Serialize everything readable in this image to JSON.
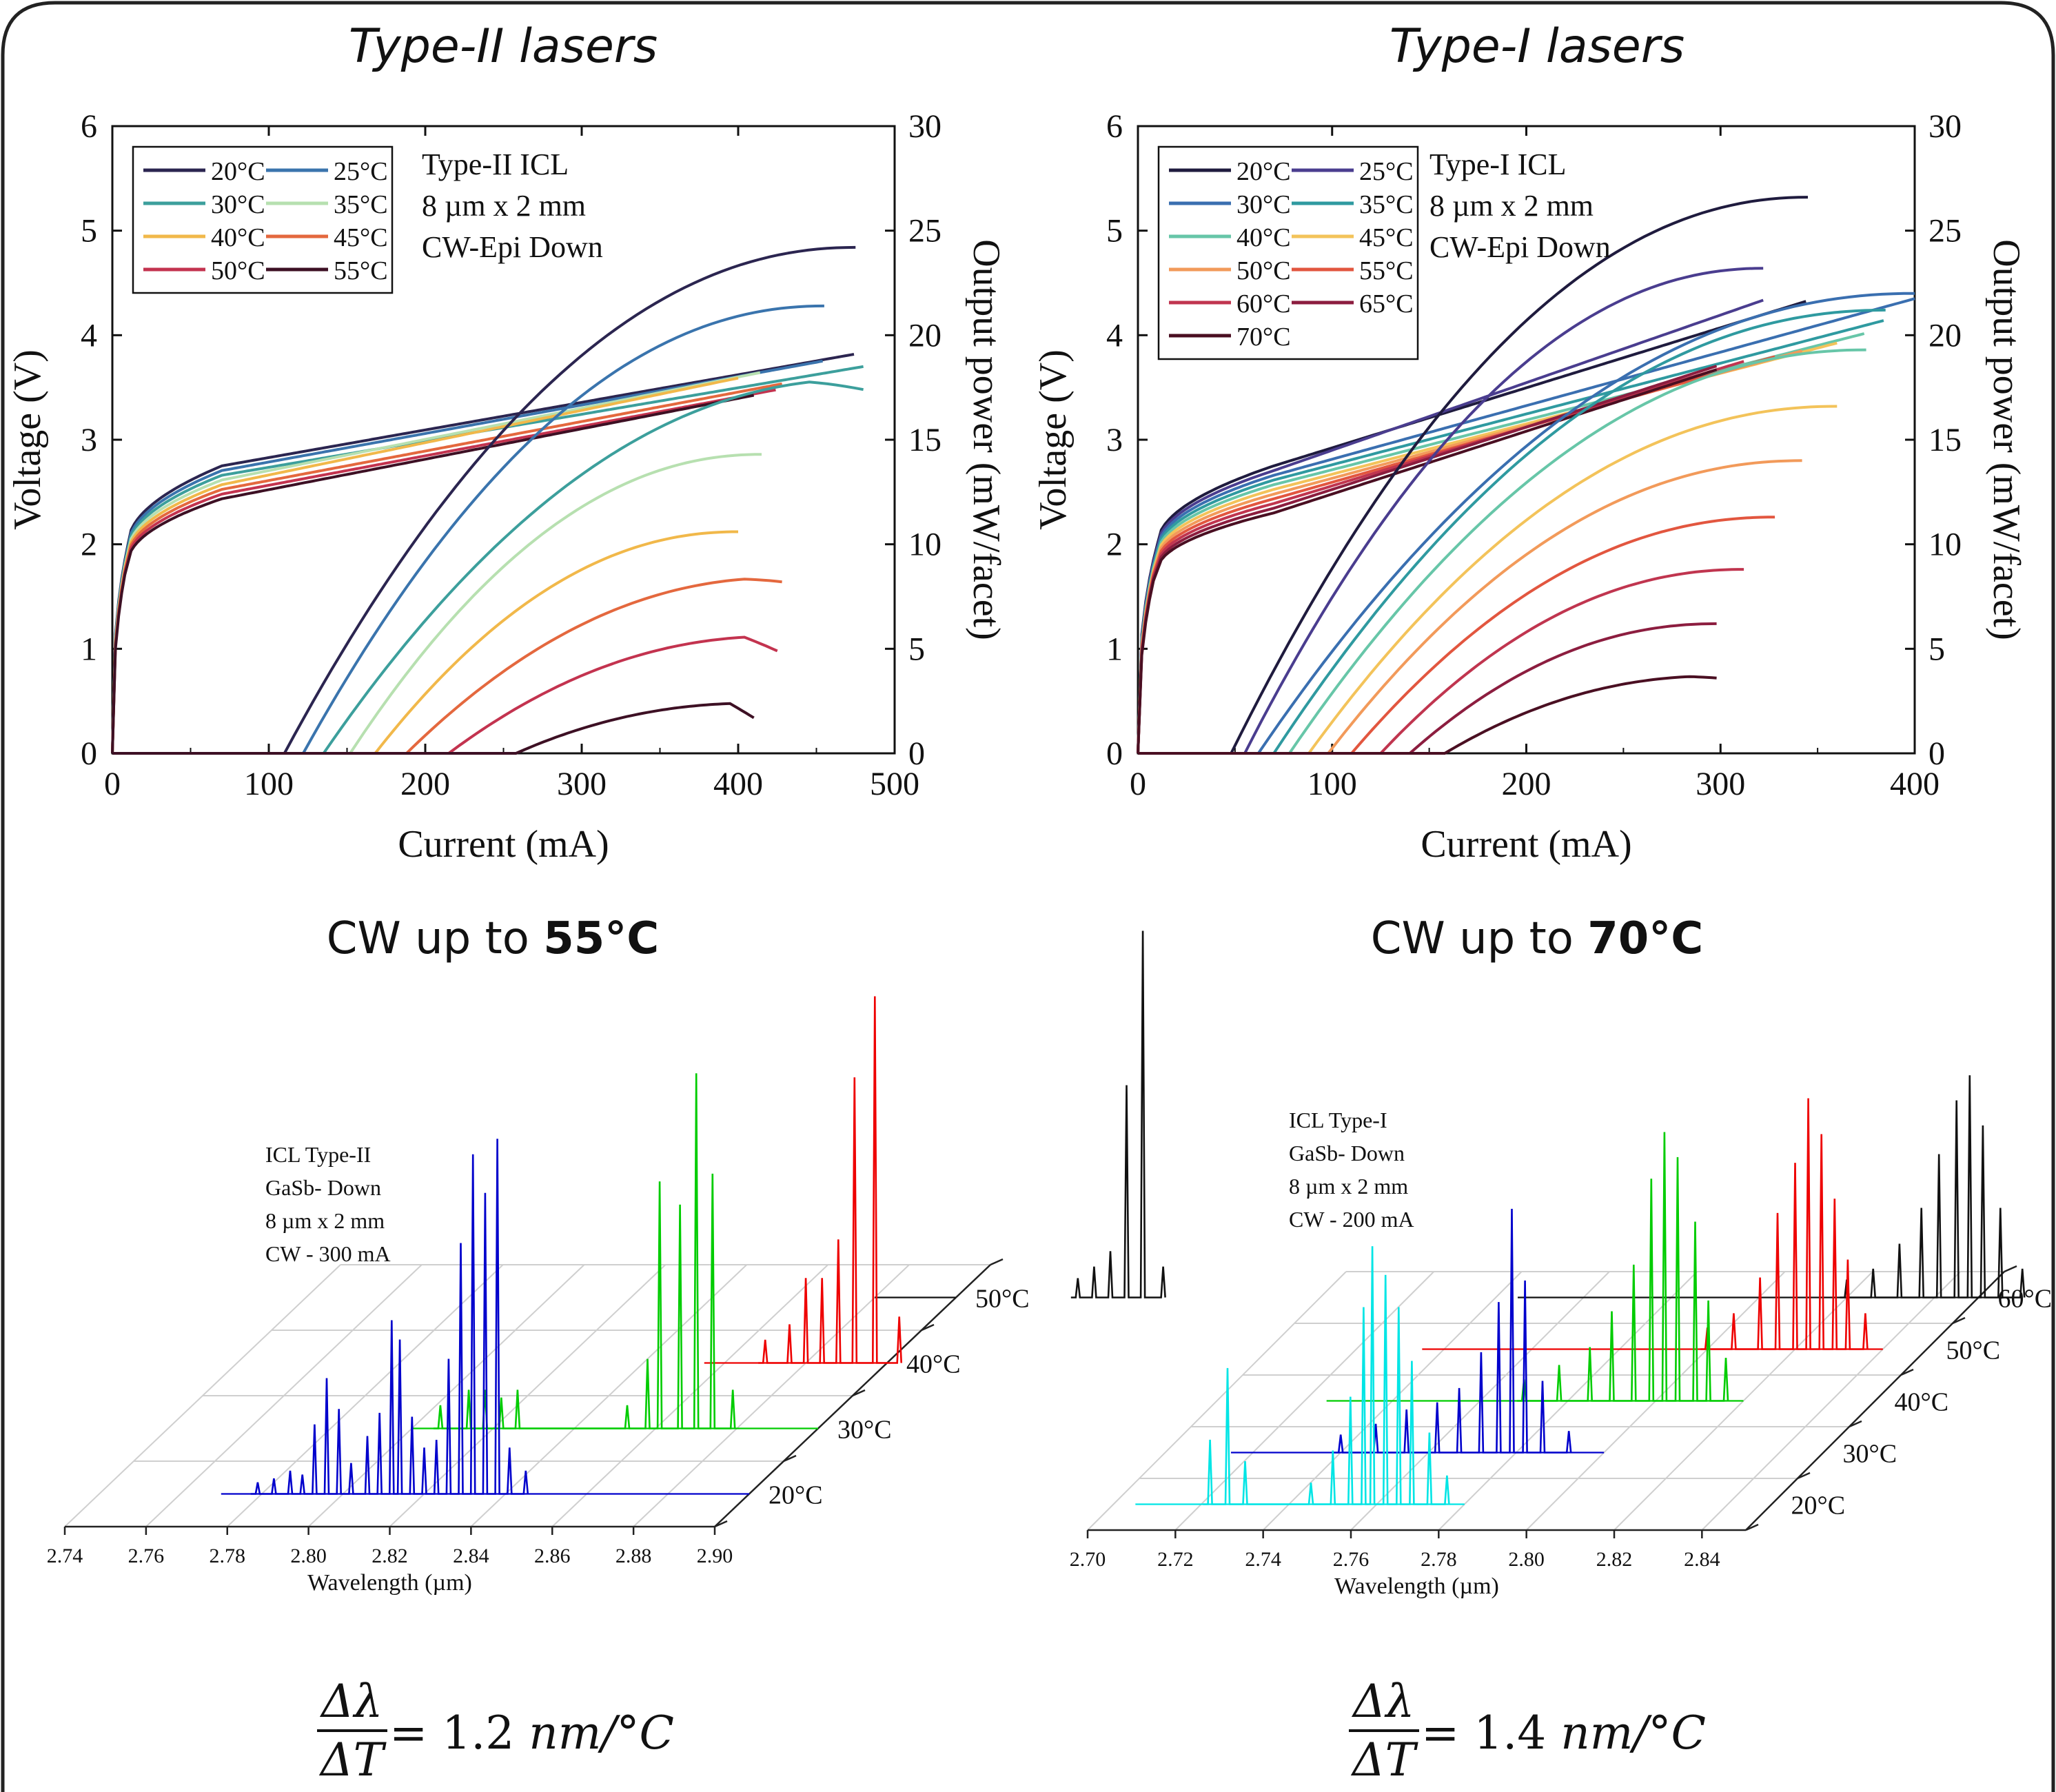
{
  "panels": [
    {
      "title": "Type-II lasers",
      "cw_prefix": "CW up to ",
      "cw_temp": "55°C",
      "formula_num": "Δλ",
      "formula_den": "ΔT",
      "formula_rhs_prefix": "= 1.2 ",
      "formula_rhs_unit": "nm/°C"
    },
    {
      "title": "Type-I lasers",
      "cw_prefix": "CW up to ",
      "cw_temp": "70°C",
      "formula_num": "Δλ",
      "formula_den": "ΔT",
      "formula_rhs_prefix": "= 1.4 ",
      "formula_rhs_unit": "nm/°C"
    }
  ],
  "chart_data": [
    {
      "id": "liv_type2",
      "type": "line",
      "xlabel": "Current (mA)",
      "ylabel_left": "Voltage (V)",
      "ylabel_right": "Output power (mW/facet)",
      "xlim": [
        0,
        500
      ],
      "ylim_left": [
        0,
        6
      ],
      "ylim_right": [
        0,
        30
      ],
      "xticks": [
        0,
        100,
        200,
        300,
        400,
        500
      ],
      "yticks_left": [
        0,
        1,
        2,
        3,
        4,
        5,
        6
      ],
      "yticks_right": [
        0,
        5,
        10,
        15,
        20,
        25,
        30
      ],
      "annotation": [
        "Type-II ICL",
        "8 µm x 2 mm",
        "CW-Epi Down"
      ],
      "legend_columns": 2,
      "legend_position": "top-left",
      "series": [
        {
          "name": "20°C",
          "color": "#2b2550",
          "v_end": 3.82,
          "power": {
            "ith": 110,
            "end": 475,
            "peak": 24.2,
            "rollover": 24.2
          }
        },
        {
          "name": "25°C",
          "color": "#3a74ad",
          "v_end": 3.78,
          "power": {
            "ith": 122,
            "end": 455,
            "peak": 21.4,
            "rollover": 21.4
          }
        },
        {
          "name": "30°C",
          "color": "#3c9f9c",
          "v_end": 3.75,
          "power": {
            "ith": 135,
            "end": 480,
            "peak": 17.9,
            "rollover": 17.4
          }
        },
        {
          "name": "35°C",
          "color": "#b7e0b0",
          "v_end": 3.72,
          "power": {
            "ith": 152,
            "end": 415,
            "peak": 14.3,
            "rollover": 14.3
          }
        },
        {
          "name": "40°C",
          "color": "#f1b84a",
          "v_end": 3.69,
          "power": {
            "ith": 168,
            "end": 400,
            "peak": 10.6,
            "rollover": 10.6
          }
        },
        {
          "name": "45°C",
          "color": "#e4683e",
          "v_end": 3.66,
          "power": {
            "ith": 188,
            "end": 428,
            "peak": 8.4,
            "rollover": 8.2
          }
        },
        {
          "name": "50°C",
          "color": "#c3334f",
          "v_end": 3.63,
          "power": {
            "ith": 215,
            "end": 425,
            "peak": 5.6,
            "rollover": 4.9
          }
        },
        {
          "name": "55°C",
          "color": "#3d1024",
          "v_end": 3.6,
          "power": {
            "ith": 258,
            "end": 410,
            "peak": 2.4,
            "rollover": 1.7
          }
        }
      ]
    },
    {
      "id": "liv_type1",
      "type": "line",
      "xlabel": "Current (mA)",
      "ylabel_left": "Voltage (V)",
      "ylabel_right": "Output power (mW/facet)",
      "xlim": [
        0,
        400
      ],
      "ylim_left": [
        0,
        6
      ],
      "ylim_right": [
        0,
        30
      ],
      "xticks": [
        0,
        100,
        200,
        300,
        400
      ],
      "yticks_left": [
        0,
        1,
        2,
        3,
        4,
        5,
        6
      ],
      "yticks_right": [
        0,
        5,
        10,
        15,
        20,
        25,
        30
      ],
      "annotation": [
        "Type-I ICL",
        "8 µm x 2 mm",
        "CW-Epi Down"
      ],
      "legend_columns": 2,
      "legend_position": "top-left",
      "series": [
        {
          "name": "20°C",
          "color": "#1f1b3e",
          "v_end": 4.33,
          "power": {
            "ith": 48,
            "end": 345,
            "peak": 26.6,
            "rollover": 26.6
          }
        },
        {
          "name": "25°C",
          "color": "#4a3d8f",
          "v_end": 4.36,
          "power": {
            "ith": 55,
            "end": 322,
            "peak": 23.2,
            "rollover": 23.2
          }
        },
        {
          "name": "30°C",
          "color": "#3a6fb0",
          "v_end": 4.4,
          "power": {
            "ith": 62,
            "end": 400,
            "peak": 22.0,
            "rollover": 22.0
          }
        },
        {
          "name": "35°C",
          "color": "#2f9aa0",
          "v_end": 4.22,
          "power": {
            "ith": 70,
            "end": 385,
            "peak": 21.2,
            "rollover": 21.2
          }
        },
        {
          "name": "40°C",
          "color": "#67c6a8",
          "v_end": 4.12,
          "power": {
            "ith": 78,
            "end": 375,
            "peak": 19.3,
            "rollover": 19.3
          }
        },
        {
          "name": "45°C",
          "color": "#f3c35a",
          "v_end": 4.05,
          "power": {
            "ith": 88,
            "end": 360,
            "peak": 16.6,
            "rollover": 16.6
          }
        },
        {
          "name": "50°C",
          "color": "#f29a5a",
          "v_end": 4.0,
          "power": {
            "ith": 98,
            "end": 342,
            "peak": 14.0,
            "rollover": 14.0
          }
        },
        {
          "name": "55°C",
          "color": "#e2563f",
          "v_end": 3.97,
          "power": {
            "ith": 110,
            "end": 328,
            "peak": 11.3,
            "rollover": 11.3
          }
        },
        {
          "name": "60°C",
          "color": "#c0354f",
          "v_end": 3.95,
          "power": {
            "ith": 125,
            "end": 312,
            "peak": 8.8,
            "rollover": 8.8
          }
        },
        {
          "name": "65°C",
          "color": "#8c1d3f",
          "v_end": 3.93,
          "power": {
            "ith": 140,
            "end": 298,
            "peak": 6.2,
            "rollover": 6.2
          }
        },
        {
          "name": "70°C",
          "color": "#4a0f22",
          "v_end": 3.92,
          "power": {
            "ith": 158,
            "end": 298,
            "peak": 3.7,
            "rollover": 3.6
          }
        }
      ]
    },
    {
      "id": "spectra_type2",
      "type": "line",
      "xlabel": "Wavelength (µm)",
      "xlim": [
        2.74,
        2.9
      ],
      "xticks": [
        "2.74",
        "2.76",
        "2.78",
        "2.80",
        "2.82",
        "2.84",
        "2.86",
        "2.88",
        "2.90"
      ],
      "annotation": [
        "ICL Type-II",
        "GaSb- Down",
        "8 µm x 2 mm",
        "CW - 300 mA"
      ],
      "series": [
        {
          "name": "20°C",
          "color": "#0000cc",
          "peaks": [
            [
              2.779,
              0.03
            ],
            [
              2.783,
              0.04
            ],
            [
              2.787,
              0.06
            ],
            [
              2.79,
              0.05
            ],
            [
              2.793,
              0.18
            ],
            [
              2.796,
              0.3
            ],
            [
              2.799,
              0.22
            ],
            [
              2.802,
              0.08
            ],
            [
              2.806,
              0.15
            ],
            [
              2.809,
              0.21
            ],
            [
              2.812,
              0.45
            ],
            [
              2.814,
              0.4
            ],
            [
              2.817,
              0.2
            ],
            [
              2.82,
              0.12
            ],
            [
              2.823,
              0.14
            ],
            [
              2.826,
              0.35
            ],
            [
              2.829,
              0.65
            ],
            [
              2.832,
              0.88
            ],
            [
              2.835,
              0.78
            ],
            [
              2.838,
              0.92
            ],
            [
              2.841,
              0.12
            ],
            [
              2.845,
              0.06
            ]
          ]
        },
        {
          "name": "30°C",
          "color": "#00cc00",
          "peaks": [
            [
              2.807,
              0.06
            ],
            [
              2.814,
              0.1
            ],
            [
              2.818,
              0.1
            ],
            [
              2.822,
              0.08
            ],
            [
              2.826,
              0.1
            ],
            [
              2.853,
              0.06
            ],
            [
              2.858,
              0.18
            ],
            [
              2.861,
              0.64
            ],
            [
              2.866,
              0.58
            ],
            [
              2.87,
              0.92
            ],
            [
              2.874,
              0.66
            ],
            [
              2.879,
              0.1
            ]
          ]
        },
        {
          "name": "40°C",
          "color": "#ee0000",
          "peaks": [
            [
              2.87,
              0.06
            ],
            [
              2.876,
              0.1
            ],
            [
              2.88,
              0.22
            ],
            [
              2.884,
              0.22
            ],
            [
              2.888,
              0.32
            ],
            [
              2.892,
              0.74
            ],
            [
              2.897,
              0.95
            ],
            [
              2.903,
              0.12
            ]
          ]
        },
        {
          "name": "50°C",
          "color": "#111111",
          "peaks": [
            [
              2.93,
              0.05
            ],
            [
              2.934,
              0.08
            ],
            [
              2.938,
              0.12
            ],
            [
              2.942,
              0.55
            ],
            [
              2.946,
              0.95
            ],
            [
              2.951,
              0.08
            ]
          ]
        }
      ]
    },
    {
      "id": "spectra_type1",
      "type": "line",
      "xlabel": "Wavelength (µm)",
      "xlim": [
        2.7,
        2.85
      ],
      "xticks": [
        "2.70",
        "2.72",
        "2.74",
        "2.76",
        "2.78",
        "2.80",
        "2.82",
        "2.84"
      ],
      "annotation": [
        "ICL Type-I",
        "GaSb- Down",
        "8 µm x 2 mm",
        "CW - 200 mA"
      ],
      "series": [
        {
          "name": "20°C",
          "color": "#00e5e5",
          "peaks": [
            [
              2.722,
              0.18
            ],
            [
              2.726,
              0.38
            ],
            [
              2.73,
              0.12
            ],
            [
              2.745,
              0.06
            ],
            [
              2.75,
              0.15
            ],
            [
              2.754,
              0.3
            ],
            [
              2.757,
              0.55
            ],
            [
              2.759,
              0.72
            ],
            [
              2.762,
              0.64
            ],
            [
              2.765,
              0.55
            ],
            [
              2.768,
              0.4
            ],
            [
              2.772,
              0.2
            ],
            [
              2.776,
              0.08
            ]
          ]
        },
        {
          "name": "30°C",
          "color": "#0000cc",
          "peaks": [
            [
              2.74,
              0.05
            ],
            [
              2.748,
              0.08
            ],
            [
              2.755,
              0.12
            ],
            [
              2.762,
              0.14
            ],
            [
              2.767,
              0.18
            ],
            [
              2.772,
              0.28
            ],
            [
              2.776,
              0.42
            ],
            [
              2.779,
              0.68
            ],
            [
              2.782,
              0.48
            ],
            [
              2.786,
              0.2
            ],
            [
              2.792,
              0.06
            ]
          ]
        },
        {
          "name": "40°C",
          "color": "#00cc00",
          "peaks": [
            [
              2.77,
              0.06
            ],
            [
              2.778,
              0.1
            ],
            [
              2.785,
              0.15
            ],
            [
              2.79,
              0.25
            ],
            [
              2.795,
              0.38
            ],
            [
              2.799,
              0.62
            ],
            [
              2.802,
              0.75
            ],
            [
              2.805,
              0.68
            ],
            [
              2.809,
              0.5
            ],
            [
              2.812,
              0.28
            ],
            [
              2.816,
              0.12
            ]
          ]
        },
        {
          "name": "50°C",
          "color": "#ee0000",
          "peaks": [
            [
              2.8,
              0.06
            ],
            [
              2.806,
              0.1
            ],
            [
              2.812,
              0.2
            ],
            [
              2.816,
              0.38
            ],
            [
              2.82,
              0.52
            ],
            [
              2.823,
              0.7
            ],
            [
              2.826,
              0.6
            ],
            [
              2.829,
              0.42
            ],
            [
              2.832,
              0.25
            ],
            [
              2.836,
              0.1
            ]
          ]
        },
        {
          "name": "60°C",
          "color": "#111111",
          "peaks": [
            [
              2.82,
              0.05
            ],
            [
              2.826,
              0.08
            ],
            [
              2.832,
              0.15
            ],
            [
              2.837,
              0.25
            ],
            [
              2.841,
              0.4
            ],
            [
              2.845,
              0.55
            ],
            [
              2.848,
              0.62
            ],
            [
              2.851,
              0.48
            ],
            [
              2.855,
              0.25
            ],
            [
              2.86,
              0.08
            ]
          ]
        }
      ]
    }
  ]
}
